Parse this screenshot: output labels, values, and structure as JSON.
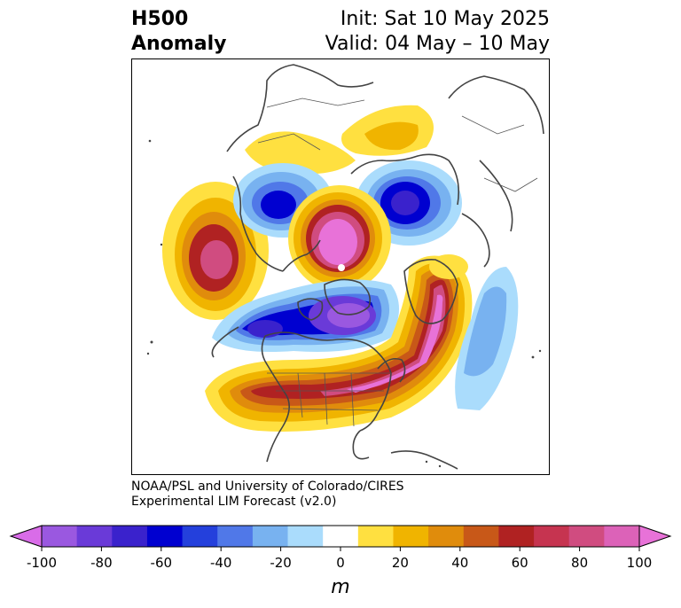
{
  "title": {
    "variable": "H500",
    "field": "Anomaly",
    "init": "Init: Sat 10 May 2025",
    "valid": "Valid: 04 May – 10 May"
  },
  "credit": {
    "line1": "NOAA/PSL and University of Colorado/CIRES",
    "line2": "Experimental LIM Forecast (v2.0)"
  },
  "colorbar": {
    "unit": "m",
    "ticks": [
      "-100",
      "-80",
      "-60",
      "-40",
      "-20",
      "0",
      "20",
      "40",
      "60",
      "80",
      "100"
    ],
    "colors": [
      "#d96ce8",
      "#9a58e0",
      "#6a3ad8",
      "#3a22cc",
      "#0000d0",
      "#2440dc",
      "#5078e8",
      "#78b2f0",
      "#aadcfc",
      "#ffffff",
      "#ffe040",
      "#f0b400",
      "#e08c0c",
      "#c85818",
      "#b02222",
      "#c63450",
      "#d04c80",
      "#dc62b8",
      "#e872d8"
    ]
  },
  "map": {
    "projection": "north-polar-stereographic",
    "anomaly_colors": {
      "pos1": "#ffe040",
      "pos2": "#f0b400",
      "pos3": "#e08c0c",
      "pos4": "#c85818",
      "pos5": "#b02222",
      "pos6": "#c63450",
      "pos7": "#d04c80",
      "pos8": "#dc62b8",
      "pos9": "#e872d8",
      "neg1": "#aadcfc",
      "neg2": "#78b2f0",
      "neg3": "#5078e8",
      "neg4": "#2440dc",
      "neg5": "#0000d0",
      "neg6": "#3a22cc",
      "neg7": "#6a3ad8"
    }
  }
}
